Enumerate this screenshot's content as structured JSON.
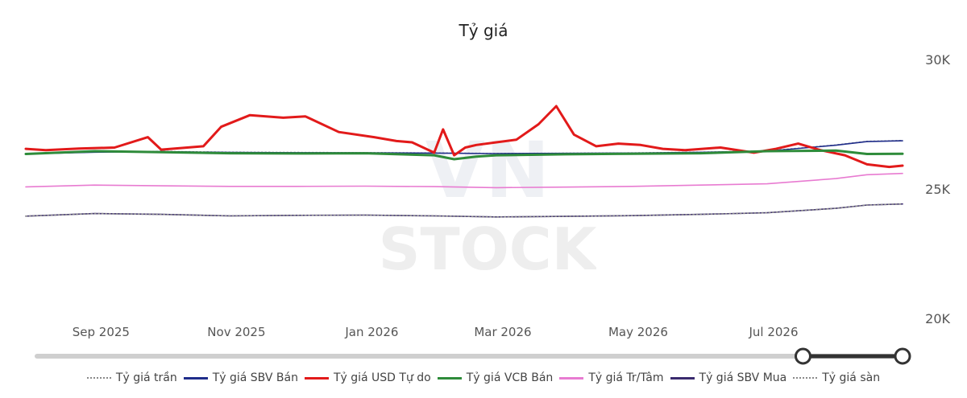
{
  "chart_data": {
    "type": "line",
    "title": "Tỷ giá",
    "xlabel": "",
    "ylabel": "",
    "ylim": [
      20000,
      30000
    ],
    "y_ticks": [
      "30K",
      "25K",
      "20K"
    ],
    "x_tick_labels": [
      "Sep 2025",
      "Nov 2025",
      "Jan 2026",
      "Mar 2026",
      "May 2026",
      "Jul 2026"
    ],
    "x_range": [
      "2025-08-01",
      "2026-08-31"
    ],
    "grid": false,
    "legend_position": "bottom",
    "series": [
      {
        "name": "Tỷ giá trần",
        "color": "#8a8a8a",
        "style": "dotted",
        "x": [
          "2025-08-01",
          "2025-09-01",
          "2025-10-01",
          "2025-11-01",
          "2025-12-01",
          "2026-01-01",
          "2026-02-01",
          "2026-03-01",
          "2026-04-01",
          "2026-05-01",
          "2026-06-01",
          "2026-07-01",
          "2026-08-01",
          "2026-08-15",
          "2026-08-31"
        ],
        "values": [
          26360,
          26430,
          26450,
          26420,
          26410,
          26400,
          26390,
          26370,
          26380,
          26390,
          26420,
          26470,
          26700,
          26840,
          26870
        ]
      },
      {
        "name": "Tỷ giá SBV Bán",
        "color": "#1f2d8a",
        "style": "solid",
        "x": [
          "2025-08-01",
          "2025-09-01",
          "2025-10-01",
          "2025-11-01",
          "2025-12-01",
          "2026-01-01",
          "2026-02-01",
          "2026-03-01",
          "2026-04-01",
          "2026-05-01",
          "2026-06-01",
          "2026-07-01",
          "2026-08-01",
          "2026-08-15",
          "2026-08-31"
        ],
        "values": [
          26350,
          26420,
          26440,
          26410,
          26400,
          26395,
          26385,
          26365,
          26375,
          26385,
          26415,
          26460,
          26690,
          26830,
          26860
        ]
      },
      {
        "name": "Tỷ giá USD Tự do",
        "color": "#e21a1a",
        "style": "solid",
        "x": [
          "2025-08-01",
          "2025-08-10",
          "2025-08-25",
          "2025-09-10",
          "2025-09-25",
          "2025-10-01",
          "2025-10-20",
          "2025-10-28",
          "2025-11-10",
          "2025-11-25",
          "2025-12-05",
          "2025-12-20",
          "2026-01-05",
          "2026-01-15",
          "2026-01-22",
          "2026-02-01",
          "2026-02-05",
          "2026-02-10",
          "2026-02-15",
          "2026-02-20",
          "2026-03-01",
          "2026-03-10",
          "2026-03-20",
          "2026-03-28",
          "2026-04-05",
          "2026-04-15",
          "2026-04-25",
          "2026-05-05",
          "2026-05-15",
          "2026-05-25",
          "2026-06-10",
          "2026-06-25",
          "2026-07-05",
          "2026-07-15",
          "2026-07-25",
          "2026-08-05",
          "2026-08-15",
          "2026-08-25",
          "2026-08-31"
        ],
        "values": [
          26550,
          26500,
          26560,
          26600,
          27000,
          26520,
          26650,
          27400,
          27850,
          27750,
          27800,
          27200,
          27000,
          26850,
          26800,
          26400,
          27300,
          26300,
          26600,
          26700,
          26800,
          26900,
          27500,
          28200,
          27100,
          26650,
          26750,
          26700,
          26550,
          26500,
          26600,
          26400,
          26550,
          26750,
          26500,
          26300,
          25950,
          25850,
          25900
        ]
      },
      {
        "name": "Tỷ giá VCB Bán",
        "color": "#2e8b3a",
        "style": "solid",
        "x": [
          "2025-08-01",
          "2025-09-01",
          "2025-10-01",
          "2025-11-01",
          "2025-12-01",
          "2026-01-01",
          "2026-02-01",
          "2026-02-10",
          "2026-02-20",
          "2026-03-01",
          "2026-04-01",
          "2026-05-01",
          "2026-06-01",
          "2026-07-01",
          "2026-08-01",
          "2026-08-15",
          "2026-08-31"
        ],
        "values": [
          26350,
          26460,
          26420,
          26380,
          26370,
          26380,
          26300,
          26150,
          26250,
          26300,
          26340,
          26360,
          26380,
          26460,
          26480,
          26350,
          26360
        ]
      },
      {
        "name": "Tỷ giá Tr/Tâm",
        "color": "#e87bd1",
        "style": "solid",
        "x": [
          "2025-08-01",
          "2025-09-01",
          "2025-10-01",
          "2025-11-01",
          "2025-12-01",
          "2026-01-01",
          "2026-02-01",
          "2026-03-01",
          "2026-04-01",
          "2026-05-01",
          "2026-06-01",
          "2026-07-01",
          "2026-08-01",
          "2026-08-15",
          "2026-08-31"
        ],
        "values": [
          25080,
          25150,
          25120,
          25100,
          25100,
          25110,
          25090,
          25050,
          25070,
          25100,
          25150,
          25200,
          25400,
          25550,
          25600
        ]
      },
      {
        "name": "Tỷ giá SBV Mua",
        "color": "#3a2a6e",
        "style": "solid",
        "x": [
          "2025-08-01",
          "2025-09-01",
          "2025-10-01",
          "2025-11-01",
          "2025-12-01",
          "2026-01-01",
          "2026-02-01",
          "2026-03-01",
          "2026-04-01",
          "2026-05-01",
          "2026-06-01",
          "2026-07-01",
          "2026-08-01",
          "2026-08-15",
          "2026-08-31"
        ],
        "values": [
          23950,
          24050,
          24020,
          23960,
          23980,
          23990,
          23960,
          23920,
          23940,
          23970,
          24020,
          24080,
          24250,
          24380,
          24420
        ]
      },
      {
        "name": "Tỷ giá sàn",
        "color": "#8a8a8a",
        "style": "dotted",
        "x": [
          "2025-08-01",
          "2025-09-01",
          "2025-10-01",
          "2025-11-01",
          "2025-12-01",
          "2026-01-01",
          "2026-02-01",
          "2026-03-01",
          "2026-04-01",
          "2026-05-01",
          "2026-06-01",
          "2026-07-01",
          "2026-08-01",
          "2026-08-15",
          "2026-08-31"
        ],
        "values": [
          23950,
          24050,
          24020,
          23960,
          23980,
          23990,
          23960,
          23920,
          23940,
          23970,
          24020,
          24080,
          24250,
          24380,
          24420
        ]
      }
    ],
    "range_slider": {
      "start_fraction": 0.885,
      "end_fraction": 1.0
    }
  }
}
